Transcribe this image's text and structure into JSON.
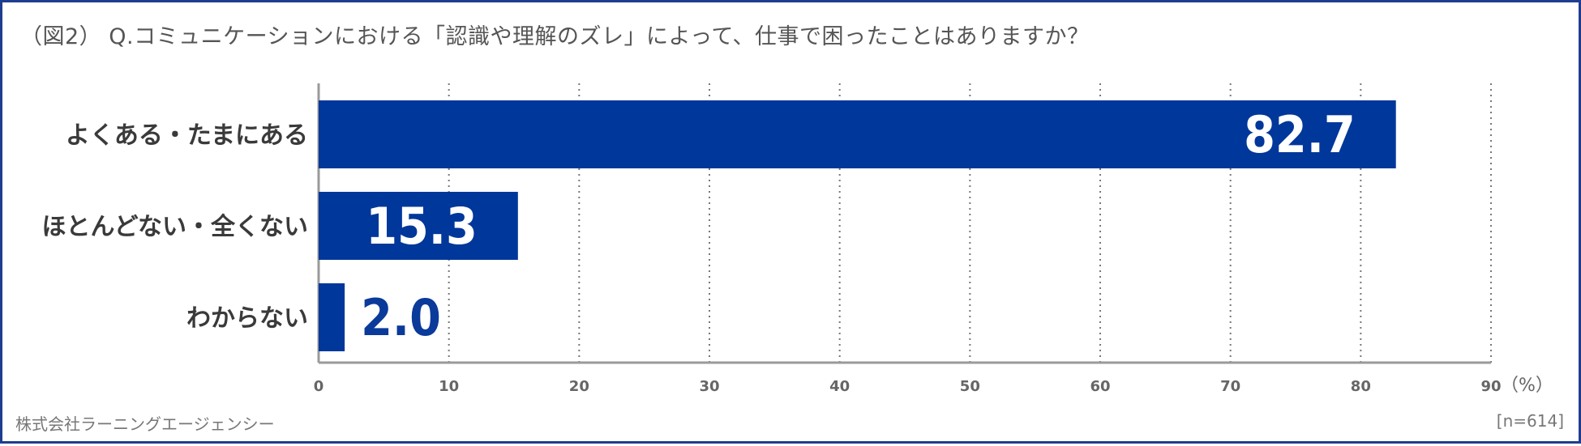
{
  "title": "（図2） Q.コミュニケーションにおける「認識や理解のズレ」によって、仕事で困ったことはありますか？",
  "footer": {
    "company": "株式会社ラーニングエージェンシー",
    "sample": "[n=614]"
  },
  "colors": {
    "bar": "#00379a",
    "border": "#1f3d8f",
    "grid": "#777777"
  },
  "chart_data": {
    "type": "bar",
    "orientation": "horizontal",
    "categories": [
      "よくある・たまにある",
      "ほとんどない・全くない",
      "わからない"
    ],
    "values": [
      82.7,
      15.3,
      2.0
    ],
    "value_labels": [
      "82.7",
      "15.3",
      "2.0"
    ],
    "xlim": [
      0,
      90
    ],
    "xticks": [
      "0",
      "10",
      "20",
      "30",
      "40",
      "50",
      "60",
      "70",
      "80",
      "90"
    ],
    "unit": "（%）",
    "grid": "vertical-dotted"
  }
}
